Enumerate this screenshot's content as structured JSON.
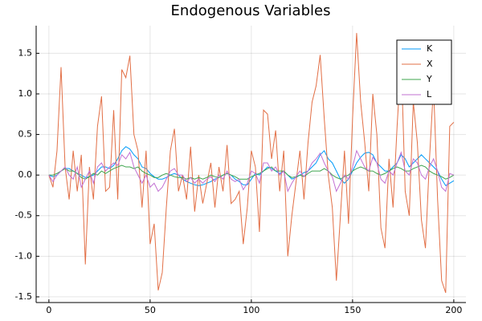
{
  "chart_data": {
    "type": "line",
    "title": "Endogenous Variables",
    "x": [
      0,
      2,
      4,
      6,
      8,
      10,
      12,
      14,
      16,
      18,
      20,
      22,
      24,
      26,
      28,
      30,
      32,
      34,
      36,
      38,
      40,
      42,
      44,
      46,
      48,
      50,
      52,
      54,
      56,
      58,
      60,
      62,
      64,
      66,
      68,
      70,
      72,
      74,
      76,
      78,
      80,
      82,
      84,
      86,
      88,
      90,
      92,
      94,
      96,
      98,
      100,
      102,
      104,
      106,
      108,
      110,
      112,
      114,
      116,
      118,
      120,
      122,
      124,
      126,
      128,
      130,
      132,
      134,
      136,
      138,
      140,
      142,
      144,
      146,
      148,
      150,
      152,
      154,
      156,
      158,
      160,
      162,
      164,
      166,
      168,
      170,
      172,
      174,
      176,
      178,
      180,
      182,
      184,
      186,
      188,
      190,
      192,
      194,
      196,
      198,
      200
    ],
    "series": [
      {
        "name": "K",
        "color": "#009af9",
        "values": [
          0,
          -0.02,
          0.0,
          0.05,
          0.08,
          0.08,
          0.05,
          0.02,
          0.0,
          -0.03,
          -0.02,
          0.0,
          0.05,
          0.1,
          0.1,
          0.08,
          0.12,
          0.2,
          0.3,
          0.35,
          0.32,
          0.25,
          0.2,
          0.1,
          0.08,
          0.02,
          -0.02,
          -0.05,
          -0.05,
          -0.03,
          0.0,
          0.02,
          0.0,
          -0.05,
          -0.08,
          -0.1,
          -0.12,
          -0.13,
          -0.12,
          -0.1,
          -0.08,
          -0.05,
          -0.03,
          0.0,
          0.02,
          0.0,
          -0.05,
          -0.08,
          -0.12,
          -0.12,
          -0.05,
          0.02,
          0.0,
          0.05,
          0.1,
          0.08,
          0.05,
          0.02,
          0.05,
          0.0,
          -0.05,
          -0.03,
          0.0,
          0.03,
          0.05,
          0.1,
          0.15,
          0.25,
          0.3,
          0.2,
          0.15,
          0.05,
          -0.05,
          -0.1,
          -0.05,
          0.05,
          0.15,
          0.22,
          0.27,
          0.28,
          0.25,
          0.15,
          0.1,
          0.05,
          0.05,
          0.1,
          0.15,
          0.25,
          0.2,
          0.1,
          0.15,
          0.2,
          0.25,
          0.2,
          0.15,
          0.1,
          0.05,
          -0.05,
          -0.13,
          -0.1,
          -0.07
        ]
      },
      {
        "name": "X",
        "color": "#e26f46",
        "values": [
          0.0,
          -0.15,
          0.3,
          1.33,
          0.1,
          -0.3,
          0.3,
          -0.2,
          0.25,
          -1.1,
          0.1,
          -0.3,
          0.6,
          0.97,
          -0.2,
          -0.15,
          0.8,
          -0.3,
          1.3,
          1.2,
          1.47,
          0.5,
          0.3,
          -0.4,
          0.3,
          -0.85,
          -0.6,
          -1.42,
          -1.2,
          -0.4,
          0.3,
          0.57,
          -0.2,
          0.0,
          -0.3,
          0.35,
          -0.45,
          0.0,
          -0.35,
          -0.1,
          0.15,
          -0.4,
          0.1,
          -0.2,
          0.37,
          -0.35,
          -0.3,
          -0.2,
          -0.85,
          -0.4,
          0.3,
          0.1,
          -0.7,
          0.8,
          0.75,
          0.2,
          0.55,
          -0.2,
          0.3,
          -1.0,
          -0.5,
          -0.1,
          0.3,
          -0.3,
          0.4,
          0.9,
          1.1,
          1.48,
          0.7,
          0.0,
          -0.4,
          -1.3,
          -0.5,
          0.3,
          -0.6,
          0.7,
          1.75,
          0.9,
          0.4,
          -0.2,
          1.0,
          0.5,
          -0.65,
          -0.9,
          0.2,
          -0.4,
          0.6,
          1.45,
          -0.2,
          -0.5,
          0.9,
          0.4,
          -0.55,
          -0.9,
          0.2,
          1.1,
          -0.3,
          -1.3,
          -1.45,
          0.6,
          0.65
        ]
      },
      {
        "name": "Y",
        "color": "#3da44d",
        "values": [
          0,
          0,
          0.02,
          0.05,
          0.08,
          0.05,
          0.05,
          0.02,
          -0.03,
          -0.05,
          -0.02,
          0.02,
          0.0,
          0.05,
          0.02,
          0.05,
          0.08,
          0.1,
          0.12,
          0.1,
          0.1,
          0.08,
          0.1,
          0.05,
          0.02,
          0.0,
          -0.03,
          -0.03,
          0.0,
          0.02,
          0.0,
          -0.02,
          -0.03,
          -0.03,
          -0.05,
          -0.03,
          -0.05,
          -0.03,
          -0.05,
          -0.03,
          0.0,
          -0.02,
          -0.03,
          0.0,
          0.02,
          0.0,
          -0.02,
          -0.05,
          -0.05,
          -0.05,
          -0.02,
          0.0,
          0.02,
          0.05,
          0.08,
          0.1,
          0.05,
          0.05,
          0.05,
          0.0,
          -0.03,
          -0.02,
          0.0,
          -0.02,
          0.02,
          0.05,
          0.05,
          0.05,
          0.08,
          0.05,
          0.0,
          -0.03,
          -0.05,
          -0.02,
          0.0,
          0.05,
          0.08,
          0.1,
          0.08,
          0.05,
          0.05,
          0.02,
          0.0,
          0.02,
          0.05,
          0.08,
          0.1,
          0.08,
          0.05,
          0.05,
          0.08,
          0.1,
          0.12,
          0.1,
          0.05,
          0.02,
          0.0,
          -0.02,
          -0.05,
          -0.03,
          0.0
        ]
      },
      {
        "name": "L",
        "color": "#c271d2",
        "values": [
          0,
          -0.08,
          0.0,
          0.05,
          0.1,
          0.0,
          -0.05,
          0.1,
          -0.15,
          -0.05,
          0.05,
          -0.1,
          0.1,
          0.15,
          0.05,
          0.1,
          0.15,
          0.12,
          0.25,
          0.2,
          0.28,
          0.1,
          0.0,
          -0.1,
          0.0,
          -0.15,
          -0.1,
          -0.2,
          -0.15,
          -0.05,
          0.05,
          0.08,
          0.0,
          0.0,
          -0.08,
          -0.03,
          -0.1,
          -0.05,
          -0.1,
          -0.05,
          -0.02,
          -0.08,
          0.0,
          -0.05,
          0.05,
          -0.05,
          -0.08,
          -0.05,
          -0.18,
          -0.1,
          0.05,
          0.02,
          -0.1,
          0.15,
          0.15,
          0.05,
          0.1,
          0.0,
          0.05,
          -0.2,
          -0.1,
          -0.02,
          0.05,
          -0.02,
          0.05,
          0.15,
          0.2,
          0.27,
          0.15,
          0.05,
          -0.02,
          -0.2,
          -0.1,
          0.0,
          -0.05,
          0.1,
          0.3,
          0.2,
          0.1,
          0.05,
          0.22,
          0.15,
          -0.05,
          -0.1,
          0.05,
          0.0,
          0.15,
          0.28,
          0.05,
          0.0,
          0.2,
          0.15,
          0.0,
          -0.05,
          0.1,
          0.2,
          0.05,
          -0.15,
          -0.2,
          0.02,
          0.0
        ]
      }
    ],
    "xlim": [
      -6.3,
      206
    ],
    "xticks": [
      0,
      50,
      100,
      150,
      200
    ],
    "ylim": [
      -1.57,
      1.84
    ],
    "yticks": [
      -1.5,
      {
        "value": -1.0,
        "label": "-1.0"
      },
      -0.5,
      {
        "value": 0.0,
        "label": "0.0"
      },
      0.5,
      {
        "value": 1.0,
        "label": "1.0"
      },
      1.5
    ],
    "grid": true,
    "legend": "top right"
  }
}
